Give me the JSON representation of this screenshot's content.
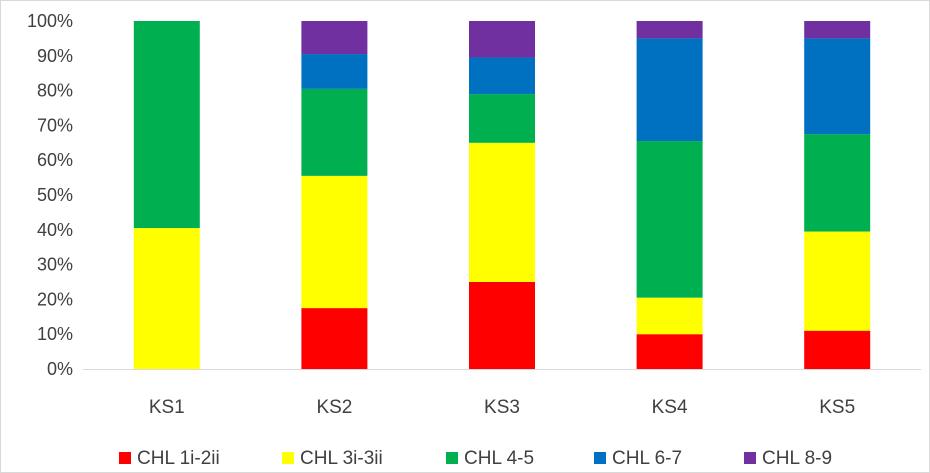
{
  "chart_data": {
    "type": "bar",
    "stacked": true,
    "percent": true,
    "categories": [
      "KS1",
      "KS2",
      "KS3",
      "KS4",
      "KS5"
    ],
    "series": [
      {
        "name": "CHL 1i-2ii",
        "color": "#ff0000",
        "values": [
          0,
          17.5,
          25,
          10,
          11
        ]
      },
      {
        "name": "CHL 3i-3ii",
        "color": "#ffff00",
        "values": [
          40.5,
          38,
          40,
          10.5,
          28.5
        ]
      },
      {
        "name": "CHL 4-5",
        "color": "#00b050",
        "values": [
          59.5,
          25,
          14,
          45,
          28
        ]
      },
      {
        "name": "CHL 6-7",
        "color": "#0070c0",
        "values": [
          0,
          10,
          10.5,
          29.5,
          27.5
        ]
      },
      {
        "name": "CHL 8-9",
        "color": "#7030a0",
        "values": [
          0,
          9.5,
          10.5,
          5,
          5
        ]
      }
    ],
    "ylim": [
      0,
      100
    ],
    "yticks": [
      "0%",
      "10%",
      "20%",
      "30%",
      "40%",
      "50%",
      "60%",
      "70%",
      "80%",
      "90%",
      "100%"
    ],
    "grid": false,
    "legend_position": "bottom"
  }
}
